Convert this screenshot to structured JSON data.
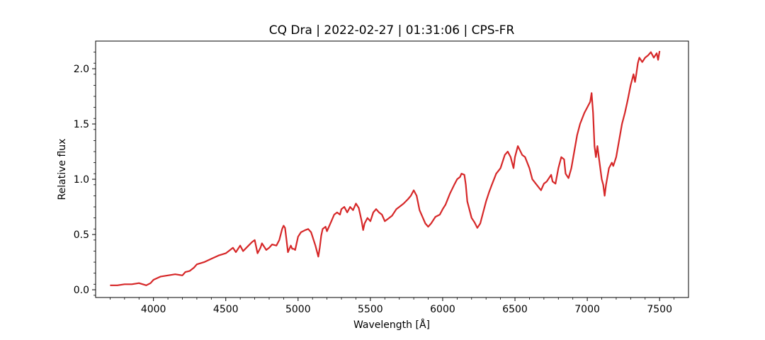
{
  "chart_data": {
    "type": "line",
    "title": "CQ Dra | 2022-02-27 | 01:31:06 | CPS-FR",
    "xlabel": "Wavelength [Å]",
    "ylabel": "Relative flux",
    "xlim": [
      3600,
      7700
    ],
    "ylim": [
      -0.07,
      2.25
    ],
    "xticks": [
      4000,
      4500,
      5000,
      5500,
      6000,
      6500,
      7000,
      7500
    ],
    "yticks": [
      0.0,
      0.5,
      1.0,
      1.5,
      2.0
    ],
    "x_tick_labels": [
      "4000",
      "4500",
      "5000",
      "5500",
      "6000",
      "6500",
      "7000",
      "7500"
    ],
    "y_tick_labels": [
      "0.0",
      "0.5",
      "1.0",
      "1.5",
      "2.0"
    ],
    "grid": false,
    "series_color": "#d62728",
    "series": [
      {
        "x": [
          3700,
          3750,
          3800,
          3850,
          3900,
          3950,
          3980,
          4000,
          4050,
          4100,
          4150,
          4200,
          4220,
          4250,
          4280,
          4300,
          4350,
          4400,
          4450,
          4500,
          4520,
          4550,
          4570,
          4600,
          4620,
          4650,
          4680,
          4700,
          4720,
          4740,
          4750,
          4780,
          4800,
          4820,
          4850,
          4870,
          4890,
          4900,
          4910,
          4920,
          4930,
          4950,
          4960,
          4970,
          4980,
          5000,
          5020,
          5050,
          5070,
          5090,
          5120,
          5140,
          5150,
          5160,
          5170,
          5190,
          5200,
          5230,
          5250,
          5270,
          5290,
          5300,
          5320,
          5340,
          5360,
          5380,
          5400,
          5420,
          5440,
          5450,
          5460,
          5480,
          5500,
          5520,
          5540,
          5560,
          5580,
          5600,
          5620,
          5650,
          5680,
          5700,
          5730,
          5760,
          5780,
          5800,
          5820,
          5840,
          5860,
          5880,
          5900,
          5920,
          5950,
          5980,
          6000,
          6020,
          6050,
          6080,
          6100,
          6120,
          6130,
          6150,
          6160,
          6170,
          6200,
          6220,
          6240,
          6260,
          6280,
          6300,
          6320,
          6340,
          6370,
          6400,
          6430,
          6450,
          6470,
          6490,
          6500,
          6520,
          6550,
          6570,
          6600,
          6620,
          6650,
          6680,
          6700,
          6720,
          6750,
          6760,
          6780,
          6800,
          6820,
          6840,
          6850,
          6870,
          6890,
          6910,
          6930,
          6950,
          6980,
          7000,
          7020,
          7030,
          7040,
          7050,
          7060,
          7070,
          7080,
          7100,
          7110,
          7120,
          7130,
          7150,
          7170,
          7180,
          7200,
          7220,
          7240,
          7260,
          7280,
          7300,
          7320,
          7330,
          7340,
          7350,
          7360,
          7380,
          7400,
          7420,
          7440,
          7460,
          7480,
          7490,
          7500
        ],
        "y": [
          0.04,
          0.04,
          0.05,
          0.05,
          0.06,
          0.04,
          0.06,
          0.09,
          0.12,
          0.13,
          0.14,
          0.13,
          0.16,
          0.17,
          0.2,
          0.23,
          0.25,
          0.28,
          0.31,
          0.33,
          0.35,
          0.38,
          0.34,
          0.4,
          0.35,
          0.39,
          0.43,
          0.45,
          0.33,
          0.38,
          0.42,
          0.36,
          0.38,
          0.41,
          0.4,
          0.45,
          0.55,
          0.58,
          0.56,
          0.45,
          0.34,
          0.4,
          0.37,
          0.37,
          0.36,
          0.48,
          0.52,
          0.54,
          0.55,
          0.52,
          0.4,
          0.3,
          0.38,
          0.49,
          0.55,
          0.57,
          0.53,
          0.62,
          0.68,
          0.7,
          0.68,
          0.73,
          0.75,
          0.7,
          0.75,
          0.72,
          0.78,
          0.74,
          0.62,
          0.54,
          0.6,
          0.65,
          0.62,
          0.7,
          0.73,
          0.7,
          0.68,
          0.62,
          0.64,
          0.67,
          0.73,
          0.75,
          0.78,
          0.82,
          0.85,
          0.9,
          0.85,
          0.72,
          0.66,
          0.6,
          0.57,
          0.6,
          0.66,
          0.68,
          0.73,
          0.77,
          0.87,
          0.95,
          1.0,
          1.02,
          1.05,
          1.04,
          0.95,
          0.8,
          0.65,
          0.61,
          0.56,
          0.6,
          0.7,
          0.8,
          0.88,
          0.95,
          1.05,
          1.1,
          1.22,
          1.25,
          1.2,
          1.1,
          1.2,
          1.3,
          1.22,
          1.2,
          1.1,
          1.0,
          0.95,
          0.9,
          0.96,
          0.98,
          1.04,
          0.98,
          0.96,
          1.1,
          1.2,
          1.18,
          1.05,
          1.01,
          1.1,
          1.25,
          1.4,
          1.5,
          1.6,
          1.65,
          1.7,
          1.78,
          1.6,
          1.3,
          1.2,
          1.3,
          1.2,
          1.0,
          0.95,
          0.85,
          0.95,
          1.1,
          1.15,
          1.12,
          1.2,
          1.35,
          1.5,
          1.6,
          1.72,
          1.85,
          1.95,
          1.88,
          1.96,
          2.05,
          2.1,
          2.06,
          2.1,
          2.12,
          2.15,
          2.1,
          2.14,
          2.08,
          2.16
        ]
      }
    ]
  }
}
